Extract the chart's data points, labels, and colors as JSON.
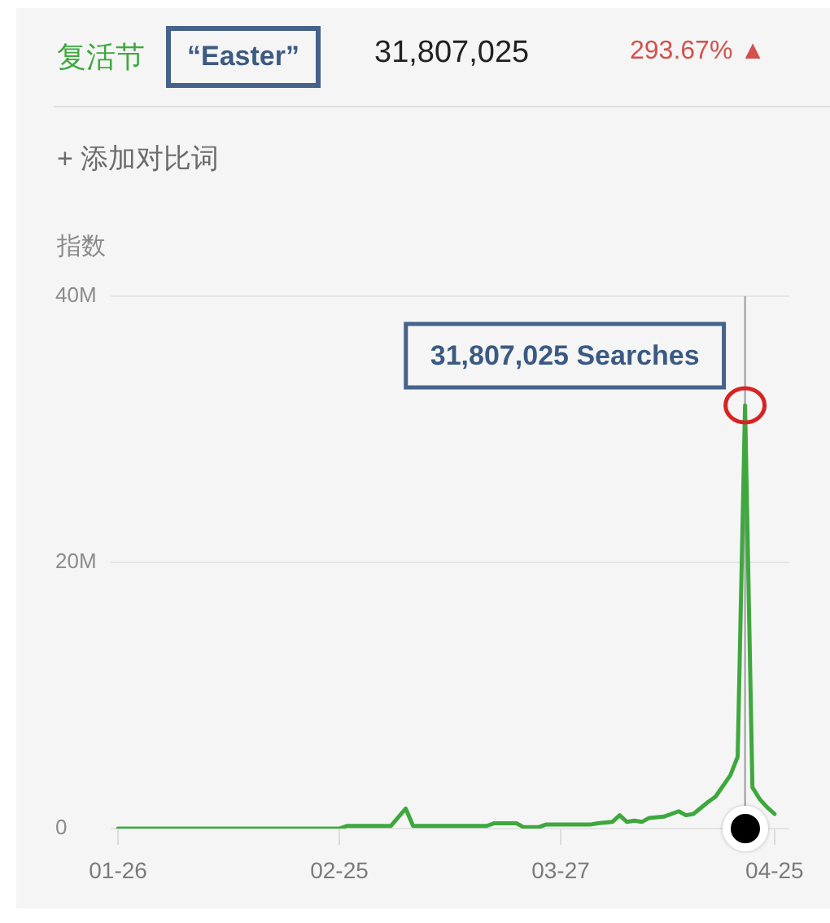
{
  "chart_data": {
    "type": "line",
    "ylabel": "指数",
    "x": [
      "--01-26",
      "--02-25",
      "--02-26",
      "--03-04",
      "--03-06",
      "--03-07",
      "--03-17",
      "--03-18",
      "--03-21",
      "--03-22",
      "--03-24",
      "--03-25",
      "--03-31",
      "--04-01",
      "--04-03",
      "--04-04",
      "--04-05",
      "--04-06",
      "--04-07",
      "--04-08",
      "--04-10",
      "--04-12",
      "--04-13",
      "--04-14",
      "--04-16",
      "--04-17",
      "--04-19",
      "--04-20",
      "--04-21",
      "--04-22",
      "--04-23",
      "--04-24",
      "--04-25"
    ],
    "series": [
      {
        "name": "复活节",
        "color": "#3ea83e",
        "values": [
          0,
          0,
          200000,
          200000,
          1500000,
          200000,
          200000,
          400000,
          400000,
          100000,
          100000,
          300000,
          300000,
          400000,
          500000,
          1000000,
          500000,
          600000,
          500000,
          800000,
          900000,
          1300000,
          1000000,
          1100000,
          2000000,
          2400000,
          4000000,
          5400000,
          31807025,
          3100000,
          2200000,
          1600000,
          1100000
        ]
      }
    ],
    "xlim": [
      "--01-25",
      "--04-27"
    ],
    "xticks": [
      {
        "value": "--01-26",
        "label": "01-26"
      },
      {
        "value": "--02-25",
        "label": "02-25"
      },
      {
        "value": "--03-27",
        "label": "03-27"
      },
      {
        "value": "--04-25",
        "label": "04-25"
      }
    ],
    "ylim": [
      0,
      40000000
    ],
    "yticks": [
      0,
      {
        "value": 20000000,
        "label": "20M"
      },
      {
        "value": 40000000,
        "label": "40M"
      }
    ],
    "grid": "y",
    "marker": "none",
    "ref_lines": [
      {
        "axis": "x",
        "value": "--04-21",
        "color": "#9a9a9a"
      }
    ],
    "annotations": [
      "“Easter”",
      "31,807,025",
      "293.67% ▲",
      "+ 添加对比词",
      {
        "text": "31,807,025 Searches",
        "x": "--04-21",
        "y": 31807025
      }
    ]
  }
}
